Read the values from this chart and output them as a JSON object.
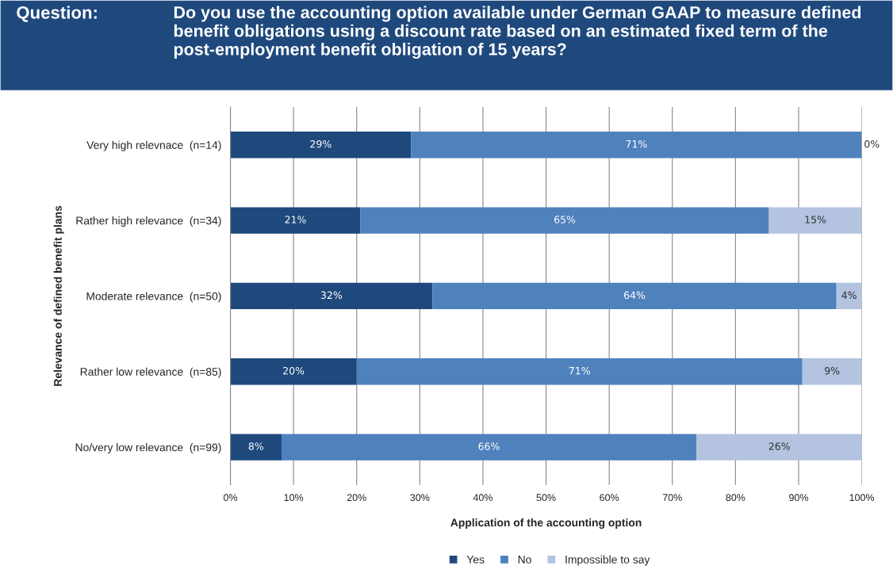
{
  "chart_data": {
    "type": "bar",
    "orientation": "horizontal",
    "stacked": true,
    "title": "Do you use the accounting option available under German GAAP to measure defined benefit obligations using a discount rate based on an estimated fixed term of the post-employment benefit obligation of 15 years?",
    "annotations": [
      "Question:"
    ],
    "xlabel": "Application of the accounting option",
    "ylabel": "Relevance of defined benefit plans",
    "categories": [
      "Very high relevnace  (n=14)",
      "Rather high relevance  (n=34)",
      "Moderate relevance  (n=50)",
      "Rather low relevance  (n=85)",
      "No/very low relevance  (n=99)"
    ],
    "series": [
      {
        "name": "Yes",
        "color": "#1f497d",
        "values": [
          28.6,
          20.6,
          32,
          20,
          8.1
        ],
        "value_labels": [
          "29%",
          "21%",
          "32%",
          "20%",
          "8%"
        ]
      },
      {
        "name": "No",
        "color": "#4f81bd",
        "values": [
          71.4,
          64.7,
          64,
          70.6,
          65.7
        ],
        "value_labels": [
          "71%",
          "65%",
          "64%",
          "71%",
          "66%"
        ]
      },
      {
        "name": "Impossible to say",
        "color": "#b3c3e0",
        "values": [
          0,
          14.7,
          4,
          9.4,
          26.3
        ],
        "value_labels": [
          "0%",
          "15%",
          "4%",
          "9%",
          "26%"
        ]
      }
    ],
    "xlim": [
      0,
      100
    ],
    "xticks": [
      {
        "value": 0,
        "label": "0%"
      },
      {
        "value": 10,
        "label": "10%"
      },
      {
        "value": 20,
        "label": "20%"
      },
      {
        "value": 30,
        "label": "30%"
      },
      {
        "value": 40,
        "label": "40%"
      },
      {
        "value": 50,
        "label": "50%"
      },
      {
        "value": 60,
        "label": "60%"
      },
      {
        "value": 70,
        "label": "70%"
      },
      {
        "value": 80,
        "label": "80%"
      },
      {
        "value": 90,
        "label": "90%"
      },
      {
        "value": 100,
        "label": "100%"
      }
    ],
    "grid": "x",
    "legend": "bottom"
  }
}
